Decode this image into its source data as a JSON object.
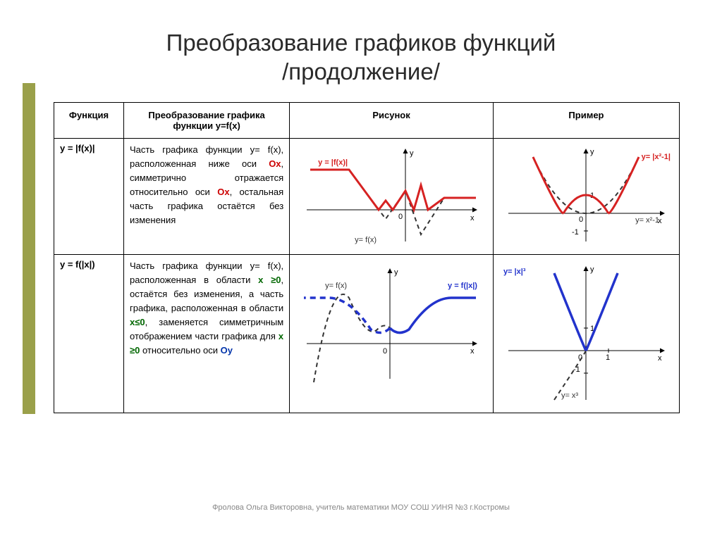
{
  "title_line1": "Преобразование графиков функций",
  "title_line2": "/продолжение/",
  "headers": {
    "func": "Функция",
    "transform": "Преобразование графика функции y=f(x)",
    "figure": "Рисунок",
    "example": "Пример"
  },
  "rows": [
    {
      "func": "y = |f(x)|",
      "desc_html": "Часть графика функции y= f(x), расположенная ниже оси <span class='ox'>Ох</span>, симметрично отражается относительно оси <span class='ox'>Ох</span>, остальная часть графика остаётся без изменения",
      "fig_labels": {
        "transformed": "y = |f(x)|",
        "original": "y= f(x)"
      },
      "ex_labels": {
        "transformed": "y= |x²-1|",
        "original": "y= x²-1"
      }
    },
    {
      "func": "y = f(|x|)",
      "desc_html": "Часть графика функции y= f(x), расположенная в области <span class='xge'>x ≥0</span>, остаётся без изменения, а часть графика, расположенная в области <span class='xge'>x≤0</span>, заменяется симметричным отображением части графика для <span class='xge'>x ≥0</span> относительно оси <span class='oy'>Оу</span>",
      "fig_labels": {
        "transformed": "y = f(|x|)",
        "original": "y= f(x)"
      },
      "ex_labels": {
        "transformed": "y= |x|³",
        "original": "y= x³"
      }
    }
  ],
  "axis": {
    "x": "x",
    "y": "y",
    "zero": "0",
    "one": "1",
    "minus_one": "-1"
  },
  "colors": {
    "accent": "#9aa04a",
    "red": "#d62222",
    "blue": "#2233cc",
    "axis": "#000000",
    "dash": "#333333",
    "text": "#222222",
    "grid": "#cccccc"
  },
  "styling": {
    "title_fontsize": 33,
    "body_fontsize": 13,
    "label_fontsize": 11,
    "footer_fontsize": 11,
    "stroke_main": 3,
    "stroke_dash": 2,
    "dash_pattern": "6,5"
  },
  "charts": {
    "row0_fig": {
      "type": "line",
      "xlim": [
        -5,
        5
      ],
      "ylim": [
        -2.5,
        3
      ],
      "original_dashed": [
        [
          -5,
          2.4
        ],
        [
          -3,
          2.4
        ],
        [
          -1.2,
          -0.6
        ],
        [
          0,
          1.2
        ],
        [
          1,
          -1.6
        ],
        [
          2.4,
          0.8
        ],
        [
          5,
          0.8
        ]
      ],
      "transformed_red": [
        [
          -5,
          2.4
        ],
        [
          -3,
          2.4
        ],
        [
          -1.6,
          0
        ],
        [
          -1.2,
          0.6
        ],
        [
          -0.8,
          0
        ],
        [
          0,
          1.2
        ],
        [
          0.7,
          0
        ],
        [
          1,
          1.6
        ],
        [
          1.4,
          0
        ],
        [
          2.4,
          0.8
        ],
        [
          5,
          0.8
        ]
      ]
    },
    "row0_ex": {
      "type": "line",
      "xlim": [
        -2.5,
        2.5
      ],
      "ylim": [
        -1.5,
        3
      ],
      "original_dashed_parabola": {
        "a": 1,
        "shift": -1
      },
      "transformed_red_abs": true
    },
    "row1_fig": {
      "type": "line",
      "xlim": [
        -5,
        5
      ],
      "ylim": [
        -3,
        3
      ],
      "original_dashed": [
        [
          -5,
          -2.8
        ],
        [
          -3.5,
          2.2
        ],
        [
          -1.5,
          -0.4
        ],
        [
          0,
          0.6
        ],
        [
          0.8,
          -0.2
        ],
        [
          2.5,
          1.8
        ],
        [
          5,
          1.8
        ]
      ],
      "transformed_blue": "mirror_right"
    },
    "row1_ex": {
      "type": "line",
      "xlim": [
        -2,
        2
      ],
      "ylim": [
        -2.5,
        3.5
      ],
      "original_dashed_cubic": true,
      "transformed_blue_abs_x": true
    }
  },
  "footer": "Фролова Ольга Викторовна, учитель математики МОУ СОШ УИНЯ №3 г.Костромы"
}
